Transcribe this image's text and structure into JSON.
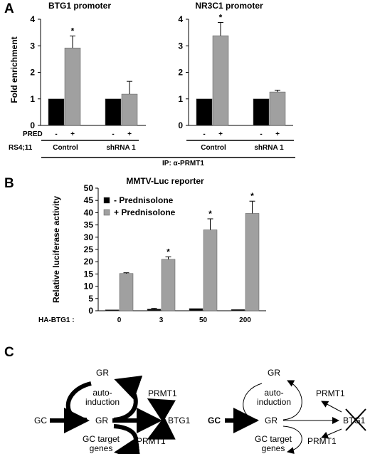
{
  "panels": {
    "A": "A",
    "B": "B",
    "C": "C"
  },
  "chart_data": [
    {
      "type": "bar",
      "title": "BTG1 promoter",
      "ylabel": "Fold enrichment",
      "ylim": [
        0,
        4
      ],
      "yticks": [
        "0",
        "1",
        "2",
        "3",
        "4"
      ],
      "categories": [
        "Control -",
        "Control +",
        "shRNA 1 -",
        "shRNA 1 +"
      ],
      "values": [
        1.0,
        2.92,
        1.0,
        1.18
      ],
      "errors": [
        0,
        0.45,
        0,
        0.48
      ],
      "colors": [
        "#000000",
        "#a0a0a0",
        "#000000",
        "#a0a0a0"
      ],
      "significance": [
        "",
        "*",
        "",
        ""
      ],
      "pred_labels": [
        "-",
        "+",
        "-",
        "+"
      ],
      "group_labels": [
        "Control",
        "shRNA 1"
      ]
    },
    {
      "type": "bar",
      "title": "NR3C1 promoter",
      "ylim": [
        0,
        4
      ],
      "yticks": [
        "0",
        "1",
        "2",
        "3",
        "4"
      ],
      "categories": [
        "Control -",
        "Control +",
        "shRNA 1 -",
        "shRNA 1 +"
      ],
      "values": [
        1.0,
        3.38,
        1.0,
        1.26
      ],
      "errors": [
        0,
        0.5,
        0,
        0.07
      ],
      "colors": [
        "#000000",
        "#a0a0a0",
        "#000000",
        "#a0a0a0"
      ],
      "significance": [
        "",
        "*",
        "",
        ""
      ],
      "pred_labels": [
        "-",
        "+",
        "-",
        "+"
      ],
      "group_labels": [
        "Control",
        "shRNA 1"
      ]
    },
    {
      "type": "bar",
      "title": "MMTV-Luc reporter",
      "ylabel": "Relative luciferase activity",
      "xlabel": "HA-BTG1 :",
      "ylim": [
        0,
        50
      ],
      "yticks": [
        "0",
        "5",
        "10",
        "15",
        "20",
        "25",
        "30",
        "35",
        "40",
        "45",
        "50"
      ],
      "categories": [
        "0",
        "3",
        "50",
        "200"
      ],
      "series": [
        {
          "name": "- Prednisolone",
          "color": "#000000",
          "values": [
            0.4,
            0.7,
            0.9,
            0.5
          ],
          "errors": [
            0,
            0.3,
            0,
            0
          ]
        },
        {
          "name": "+ Prednisolone",
          "color": "#a0a0a0",
          "values": [
            15.2,
            21.0,
            33.0,
            39.7
          ],
          "errors": [
            0.3,
            1.0,
            4.5,
            5.0
          ]
        }
      ],
      "significance": [
        "",
        "*",
        "*",
        "*"
      ]
    }
  ],
  "panelA_labels": {
    "pred": "PRED",
    "cell_line": "RS4;11",
    "ip": "IP: α-PRMT1"
  },
  "diagram": {
    "left": {
      "gr_top": "GR",
      "auto_induction_1": "auto-",
      "auto_induction_2": "induction",
      "gc": "GC",
      "gr_mid": "GR",
      "prmt1_top": "PRMT1",
      "btg1": "BTG1",
      "prmt1_bottom": "PRMT1",
      "target_1": "GC target",
      "target_2": "genes"
    },
    "right": {
      "gr_top": "GR",
      "auto_induction_1": "auto-",
      "auto_induction_2": "induction",
      "gc": "GC",
      "gr_mid": "GR",
      "prmt1_top": "PRMT1",
      "btg1": "BTG1",
      "prmt1_bottom": "PRMT1",
      "target_1": "GC target",
      "target_2": "genes"
    }
  }
}
